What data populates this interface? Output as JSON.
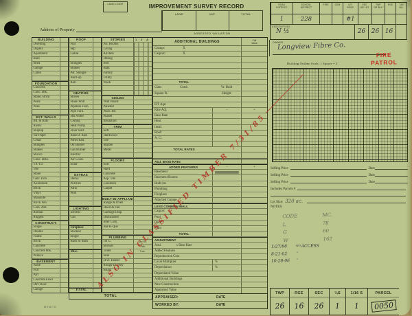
{
  "colors": {
    "paper": "#b9c58c",
    "ink": "#2c2d1e",
    "stamp_red": "#c5241b",
    "note_red": "#b23529"
  },
  "header": {
    "land_code": "LAND CODE",
    "title": "IMPROVEMENT SURVEY RECORD",
    "address_label": "Address of Property",
    "valuation": {
      "caption": "ASSESSED VALUATION",
      "cols": [
        "LAND",
        "IMP.",
        "TOTAL"
      ]
    },
    "district": {
      "cols": [
        {
          "h": "ROAD\nDISTRICT",
          "v": "1",
          "cls": "w32"
        },
        {
          "h": "SCHOOL\nDISTRICT",
          "v": "228",
          "cls": "w40"
        },
        {
          "h": "FIRE",
          "v": "",
          "cls": "w18"
        },
        {
          "h": "CEM",
          "v": "",
          "cls": "w16"
        },
        {
          "h": "A.P.\nHOSP.",
          "v": "#1",
          "cls": "w22"
        },
        {
          "h": "SEC\nOR LOT",
          "v": "",
          "cls": "w20"
        },
        {
          "h": "TWP\nOR BLK",
          "v": "",
          "cls": "w20"
        },
        {
          "h": "RGE",
          "v": "",
          "cls": "w16"
        },
        {
          "h": "TAX\nNO.",
          "v": "",
          "cls": "w16"
        }
      ],
      "description_label": "DESCRIPTION",
      "description_value": "N ½",
      "sec": "26",
      "twp": "26",
      "rge": "16"
    }
  },
  "owner": {
    "label": "OWNER",
    "name": "Longview Fibre Co."
  },
  "stamp": {
    "line1": "FIRE",
    "line2": "PATROL"
  },
  "outline_caption": "Building Outline    Scale, 1 Square = 2′",
  "red_note": "ALSO IN CLASSIFIED TIMBER 7/31/85",
  "stack1": [
    {
      "l": "BUILDING",
      "cls": "hdr"
    },
    {
      "l": "Dwelling"
    },
    {
      "l": "Duplex"
    },
    {
      "l": "Apartment"
    },
    {
      "l": "Barn"
    },
    {
      "l": "Shed"
    },
    {
      "l": "Garage"
    },
    {
      "l": "Cabin"
    },
    {},
    {
      "l": "FOUNDATION",
      "cls": "hdr tt"
    },
    {
      "l": "Concrete"
    },
    {
      "l": "Conc. Blk."
    },
    {
      "l": "Stone, Brick"
    },
    {
      "l": "Posts"
    },
    {
      "l": "Piles"
    },
    {},
    {
      "l": "EXT. WALLS",
      "cls": "hdr tt"
    },
    {
      "l": "Bd. & Bats"
    },
    {
      "l": "Rustic"
    },
    {
      "l": "Shiplap"
    },
    {
      "l": "Tar Paper"
    },
    {
      "l": "Cedar"
    },
    {
      "l": "Shingles"
    },
    {
      "l": "Shakes"
    },
    {
      "l": "Stucco"
    },
    {
      "l": "Conc. Blks."
    },
    {
      "l": "TX-111"
    },
    {
      "l": "Tile"
    },
    {
      "l": "Stone"
    },
    {
      "l": "Galv. Iron"
    },
    {
      "l": "Aluminum"
    },
    {
      "l": "Brick"
    },
    {
      "l": "Vinyl"
    },
    {
      "l": "Masonite"
    },
    {
      "l": "Brick Ven."
    },
    {
      "l": "Cem. Asb."
    },
    {
      "l": "Roman"
    },
    {
      "l": "Rugged"
    },
    {
      "l": "CONSTRUCT.",
      "cls": "hdr tt"
    },
    {
      "l": "Single"
    },
    {
      "l": "Double"
    },
    {
      "l": "Frame"
    },
    {
      "l": "Brick"
    },
    {
      "l": "Concrete"
    },
    {
      "l": "Concrete Blk."
    },
    {
      "l": "Pumice"
    },
    {
      "l": "BASEMENT",
      "cls": "hdr tt"
    },
    {
      "l": "None"
    },
    {
      "l": "Full"
    },
    {
      "l": "Part"
    },
    {
      "l": "Concrete Floor"
    },
    {
      "l": "Dirt Floor"
    },
    {
      "l": "Garage"
    }
  ],
  "stack2": [
    {
      "l": "ROOF",
      "cls": "hdr"
    },
    {
      "l": "Flat"
    },
    {
      "l": "Hip"
    },
    {
      "l": "Gable"
    },
    {},
    {
      "l": "Shingles"
    },
    {
      "l": "Shakes"
    },
    {
      "l": "Pat. Shingle"
    },
    {
      "l": "Built-up"
    },
    {
      "l": "Roll"
    },
    {},
    {
      "l": "HEATING",
      "cls": "hdr tt"
    },
    {
      "l": "Stoves"
    },
    {
      "l": "Floor-Wall"
    },
    {
      "l": "Pipeless Furn."
    },
    {
      "l": "Pipe Furn."
    },
    {
      "l": "Hot Water"
    },
    {
      "l": "Ceiling"
    },
    {
      "l": "Heat Pump"
    },
    {
      "l": "Floor Rad."
    },
    {
      "l": "Base B. Rad."
    },
    {
      "l": "Panel Rad."
    },
    {
      "l": "Oil Burner"
    },
    {
      "l": "Gas Burner"
    },
    {
      "l": "Electric"
    },
    {
      "l": "Air Cond."
    },
    {
      "l": "Solar"
    },
    {},
    {
      "l": "EXTRAS",
      "cls": "hdr tt"
    },
    {
      "l": "Decks"
    },
    {
      "l": "Porches"
    },
    {
      "l": "Patio"
    },
    {
      "l": "Pool"
    },
    {},
    {},
    {
      "l": "LIGHTING",
      "cls": "hdr tt"
    },
    {
      "l": "Electric"
    },
    {
      "l": "Gas"
    },
    {},
    {
      "l": "Fireplace",
      "cls": "b tt"
    },
    {
      "l": "Stacked"
    },
    {
      "l": "Single"
    },
    {
      "l": "Back to Back"
    },
    {},
    {
      "l": "Misc.",
      "cls": "b tt"
    },
    {},
    {},
    {},
    {},
    {},
    {},
    {},
    {
      "l": "TOTAL",
      "cls": "tot tt"
    }
  ],
  "stack3": [
    {
      "l": "STORIES",
      "l2": "1 2 A B",
      "cls": "hdr c4h"
    },
    {
      "l": "No. Rooms",
      "cls": "c4"
    },
    {
      "l": "Living",
      "cls": "c4"
    },
    {
      "l": "Kitchen",
      "cls": "c4"
    },
    {
      "l": "Dining",
      "cls": "c4"
    },
    {
      "l": "Bed",
      "cls": "c4"
    },
    {
      "l": "Bath",
      "cls": "c4"
    },
    {
      "l": "Family",
      "cls": "c4"
    },
    {
      "l": "Utility",
      "cls": "c4"
    },
    {
      "l": "Nook",
      "cls": "c4"
    },
    {
      "cls": "c4"
    },
    {
      "cls": "c4"
    },
    {
      "l": "CEILED",
      "cls": "hdr tt"
    },
    {
      "l": "Wall Board"
    },
    {
      "l": "Paneled"
    },
    {
      "l": "Plast.-Bd."
    },
    {
      "l": "Plaster"
    },
    {
      "l": "Insulation"
    },
    {
      "l": "TRIM",
      "cls": "hdr tt"
    },
    {
      "l": "Soft"
    },
    {
      "l": "Hardwood"
    },
    {
      "l": "Tile"
    },
    {
      "l": "Marble"
    },
    {
      "l": "Metal"
    },
    {},
    {
      "l": "FLOORS",
      "cls": "hdr tt"
    },
    {
      "l": "Soft"
    },
    {
      "l": "Hard"
    },
    {
      "l": "Concrete"
    },
    {
      "l": "Asp. Tile"
    },
    {
      "l": "Linoleum"
    },
    {
      "l": "Carpet"
    },
    {},
    {
      "l": "BUILT-IN APPLIANCES",
      "cls": "hdr tt"
    },
    {
      "l": "Range & Oven"
    },
    {
      "l": "Hood & Fan"
    },
    {
      "l": "Garbage Disp."
    },
    {
      "l": "Dishwasher"
    },
    {
      "l": "Inter Com."
    },
    {
      "l": "Bar-B-Que"
    },
    {},
    {
      "l": "PLUMBING",
      "cls": "hdr tt"
    },
    {
      "l": "1st G.",
      "l2": "2nd G."
    },
    {
      "l": "Shower",
      "l2": "Tub"
    },
    {
      "l": "Toilet",
      "l2": "Lav."
    },
    {
      "l": "Sink"
    },
    {
      "l": "H.W. Heater"
    },
    {
      "l": "Rough-In Only"
    },
    {
      "l": "Sauna"
    },
    {},
    {},
    {},
    {}
  ],
  "mid": {
    "title": "ADDITIONAL BUILDINGS",
    "full_value": "Full\nValue",
    "rows": [
      {
        "l": "Garage:",
        "c": "X"
      },
      {
        "l": "Carport:",
        "c": "X"
      },
      {},
      {},
      {},
      {},
      {
        "c": "TOTAL",
        "cls": "b"
      },
      {
        "l": "Class",
        "c": "Cond.",
        "m": "Yr. Built"
      },
      {
        "l": "Square Ft.",
        "m": "Height"
      },
      {},
      {
        "l": "Eff. Age:"
      },
      {
        "l": "Rate Adj.",
        "m": "−",
        "r": "+",
        "cls": "vm"
      },
      {
        "l": "Base Rate",
        "cls": "vm"
      },
      {
        "l": "Heat:",
        "cls": "vm"
      },
      {
        "l": "Insul:",
        "cls": "vm"
      },
      {
        "l": "Roof:",
        "cls": "vm"
      },
      {
        "l": "A. C.:",
        "cls": "vm"
      },
      {
        "cls": "vm"
      },
      {
        "c": "TOTAL RATES",
        "cls": "b"
      },
      {},
      {
        "l": "ADJ. BASE RATE",
        "cls": "b tt"
      },
      {
        "l": "ADDED FEATURES",
        "m": "−",
        "r": "+",
        "cls": "h vm tt"
      },
      {
        "l": "Basement",
        "cls": "vm sm"
      },
      {
        "l": "Basement Rooms",
        "cls": "vm"
      },
      {
        "l": "Built-ins",
        "cls": "vm"
      },
      {
        "l": "Plumbing",
        "cls": "vm"
      },
      {
        "l": "Fireplace",
        "cls": "vm"
      },
      {
        "l": "Attached Garage",
        "cls": "vm"
      },
      {
        "l": "LESS COMMON WALL",
        "cls": "b vm tt"
      },
      {
        "l": "Carport",
        "cls": "vm"
      },
      {
        "l": "Pool",
        "cls": "vm"
      },
      {
        "l": "Deck",
        "cls": "vm"
      },
      {
        "l": "Patio",
        "cls": "vm"
      },
      {
        "c": "TOTAL",
        "cls": "b vm"
      },
      {
        "l": "ADJUSTMENT",
        "cls": "b tt"
      },
      {
        "l": "Area",
        "c": "x Base Rate"
      },
      {
        "l": "Added Features"
      },
      {
        "l": "Reproduction Cost"
      },
      {
        "l": "Local Multiplier",
        "m": "%",
        "cls": "pc"
      },
      {
        "l": "Depreciation",
        "m": "%",
        "cls": "pc"
      },
      {
        "l": "Depreciated Value"
      },
      {
        "l": "Additional Buildings"
      },
      {
        "l": "New Construction"
      },
      {
        "l": "Appraised Value"
      }
    ]
  },
  "bottom_total": "TOTAL",
  "appraiser": {
    "rows": [
      {
        "l": "APPRAISER:",
        "d": "DATE"
      },
      {
        "l": "WORKED BY:",
        "d": "DATE"
      }
    ]
  },
  "footer_mark": "MEMCO",
  "selling": {
    "rows": [
      {
        "l": "Selling Price",
        "d": "Date"
      },
      {
        "l": "Selling Price",
        "d": "Date"
      },
      {
        "l": "Selling Price",
        "d": "Date"
      }
    ],
    "includes": "Includes Parcels #",
    "lot_label": "Lot Size:",
    "lot_value": "320 ac.",
    "notes_label": "NOTES:"
  },
  "notes": {
    "pencil": [
      {
        "k": "CODE",
        "v": "MC."
      },
      {
        "k": "L",
        "v": "78"
      },
      {
        "k": "G",
        "v": "60"
      },
      {
        "k": "W",
        "v": "162"
      }
    ],
    "pen": [
      {
        "d": "1/27/98",
        "sup": "NO",
        "t": "ACCESS"
      },
      {
        "d": "8-21-02",
        "sup": "",
        "t": "″"
      },
      {
        "d": "10-28-06",
        "sup": "",
        "t": "″"
      }
    ]
  },
  "parcel_table": {
    "cols": [
      {
        "h": "TWP",
        "v": "26",
        "cls": "w28"
      },
      {
        "h": "RGE",
        "v": "16",
        "cls": "w28"
      },
      {
        "h": "SEC",
        "v": "26",
        "cls": "w30"
      },
      {
        "h": "¼S",
        "v": "1",
        "cls": "w24"
      },
      {
        "h": "1/16 S",
        "v": "1",
        "cls": "w32"
      },
      {
        "h": "PARCEL",
        "v": "0050",
        "cls": "w46 box"
      }
    ]
  }
}
